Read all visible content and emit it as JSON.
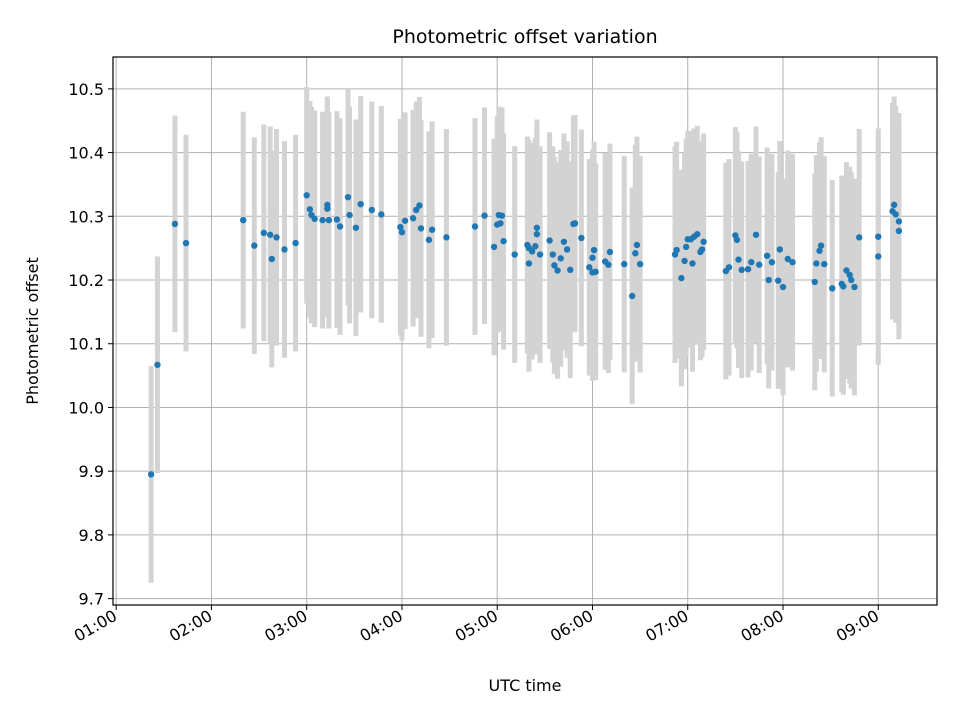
{
  "chart_data": {
    "type": "scatter",
    "title": "Photometric offset variation",
    "xlabel": "UTC time",
    "ylabel": "Photometric offset",
    "x_ticks": [
      "01:00",
      "02:00",
      "03:00",
      "04:00",
      "05:00",
      "06:00",
      "07:00",
      "08:00",
      "09:00"
    ],
    "y_ticks": [
      "9.7",
      "9.8",
      "9.9",
      "10.0",
      "10.1",
      "10.2",
      "10.3",
      "10.4",
      "10.5"
    ],
    "xlim": [
      "00:58",
      "09:37"
    ],
    "ylim": [
      9.69,
      10.55
    ],
    "grid": true,
    "colors": {
      "points": "#1f77b4",
      "error_bars": "#d3d3d3",
      "grid": "#b0b0b0"
    },
    "error_bar_halfwidth": 0.17,
    "points": [
      {
        "t": "01:22",
        "y": 9.895
      },
      {
        "t": "01:26",
        "y": 10.067
      },
      {
        "t": "01:37",
        "y": 10.288
      },
      {
        "t": "01:44",
        "y": 10.258
      },
      {
        "t": "02:20",
        "y": 10.294
      },
      {
        "t": "02:27",
        "y": 10.254
      },
      {
        "t": "02:33",
        "y": 10.274
      },
      {
        "t": "02:37",
        "y": 10.271
      },
      {
        "t": "02:38",
        "y": 10.233
      },
      {
        "t": "02:41",
        "y": 10.267
      },
      {
        "t": "02:46",
        "y": 10.248
      },
      {
        "t": "02:53",
        "y": 10.258
      },
      {
        "t": "03:00",
        "y": 10.333
      },
      {
        "t": "03:02",
        "y": 10.311
      },
      {
        "t": "03:03",
        "y": 10.302
      },
      {
        "t": "03:05",
        "y": 10.296
      },
      {
        "t": "03:10",
        "y": 10.294
      },
      {
        "t": "03:13",
        "y": 10.318
      },
      {
        "t": "03:13",
        "y": 10.312
      },
      {
        "t": "03:14",
        "y": 10.294
      },
      {
        "t": "03:19",
        "y": 10.295
      },
      {
        "t": "03:21",
        "y": 10.284
      },
      {
        "t": "03:26",
        "y": 10.33
      },
      {
        "t": "03:27",
        "y": 10.302
      },
      {
        "t": "03:31",
        "y": 10.282
      },
      {
        "t": "03:34",
        "y": 10.319
      },
      {
        "t": "03:41",
        "y": 10.31
      },
      {
        "t": "03:47",
        "y": 10.303
      },
      {
        "t": "03:59",
        "y": 10.283
      },
      {
        "t": "04:00",
        "y": 10.275
      },
      {
        "t": "04:02",
        "y": 10.293
      },
      {
        "t": "04:07",
        "y": 10.297
      },
      {
        "t": "04:09",
        "y": 10.31
      },
      {
        "t": "04:11",
        "y": 10.317
      },
      {
        "t": "04:12",
        "y": 10.281
      },
      {
        "t": "04:17",
        "y": 10.263
      },
      {
        "t": "04:19",
        "y": 10.279
      },
      {
        "t": "04:28",
        "y": 10.267
      },
      {
        "t": "04:46",
        "y": 10.284
      },
      {
        "t": "04:52",
        "y": 10.301
      },
      {
        "t": "04:58",
        "y": 10.252
      },
      {
        "t": "05:00",
        "y": 10.287
      },
      {
        "t": "05:01",
        "y": 10.302
      },
      {
        "t": "05:02",
        "y": 10.289
      },
      {
        "t": "05:03",
        "y": 10.301
      },
      {
        "t": "05:04",
        "y": 10.261
      },
      {
        "t": "05:11",
        "y": 10.24
      },
      {
        "t": "05:19",
        "y": 10.255
      },
      {
        "t": "05:20",
        "y": 10.25
      },
      {
        "t": "05:20",
        "y": 10.226
      },
      {
        "t": "05:22",
        "y": 10.245
      },
      {
        "t": "05:24",
        "y": 10.253
      },
      {
        "t": "05:25",
        "y": 10.282
      },
      {
        "t": "05:25",
        "y": 10.272
      },
      {
        "t": "05:27",
        "y": 10.24
      },
      {
        "t": "05:33",
        "y": 10.262
      },
      {
        "t": "05:35",
        "y": 10.24
      },
      {
        "t": "05:36",
        "y": 10.223
      },
      {
        "t": "05:38",
        "y": 10.215
      },
      {
        "t": "05:40",
        "y": 10.234
      },
      {
        "t": "05:42",
        "y": 10.26
      },
      {
        "t": "05:44",
        "y": 10.248
      },
      {
        "t": "05:46",
        "y": 10.216
      },
      {
        "t": "05:48",
        "y": 10.288
      },
      {
        "t": "05:49",
        "y": 10.289
      },
      {
        "t": "05:53",
        "y": 10.266
      },
      {
        "t": "05:58",
        "y": 10.22
      },
      {
        "t": "06:00",
        "y": 10.212
      },
      {
        "t": "06:00",
        "y": 10.235
      },
      {
        "t": "06:01",
        "y": 10.247
      },
      {
        "t": "06:02",
        "y": 10.213
      },
      {
        "t": "06:08",
        "y": 10.229
      },
      {
        "t": "06:10",
        "y": 10.224
      },
      {
        "t": "06:11",
        "y": 10.244
      },
      {
        "t": "06:20",
        "y": 10.225
      },
      {
        "t": "06:25",
        "y": 10.175
      },
      {
        "t": "06:27",
        "y": 10.242
      },
      {
        "t": "06:28",
        "y": 10.255
      },
      {
        "t": "06:30",
        "y": 10.225
      },
      {
        "t": "06:52",
        "y": 10.24
      },
      {
        "t": "06:53",
        "y": 10.247
      },
      {
        "t": "06:56",
        "y": 10.203
      },
      {
        "t": "06:58",
        "y": 10.23
      },
      {
        "t": "06:59",
        "y": 10.252
      },
      {
        "t": "07:00",
        "y": 10.264
      },
      {
        "t": "07:02",
        "y": 10.264
      },
      {
        "t": "07:03",
        "y": 10.226
      },
      {
        "t": "07:04",
        "y": 10.268
      },
      {
        "t": "07:06",
        "y": 10.272
      },
      {
        "t": "07:08",
        "y": 10.244
      },
      {
        "t": "07:09",
        "y": 10.248
      },
      {
        "t": "07:10",
        "y": 10.26
      },
      {
        "t": "07:24",
        "y": 10.214
      },
      {
        "t": "07:26",
        "y": 10.22
      },
      {
        "t": "07:30",
        "y": 10.27
      },
      {
        "t": "07:31",
        "y": 10.263
      },
      {
        "t": "07:32",
        "y": 10.232
      },
      {
        "t": "07:34",
        "y": 10.216
      },
      {
        "t": "07:38",
        "y": 10.217
      },
      {
        "t": "07:40",
        "y": 10.228
      },
      {
        "t": "07:43",
        "y": 10.271
      },
      {
        "t": "07:45",
        "y": 10.224
      },
      {
        "t": "07:50",
        "y": 10.238
      },
      {
        "t": "07:51",
        "y": 10.2
      },
      {
        "t": "07:53",
        "y": 10.228
      },
      {
        "t": "07:57",
        "y": 10.199
      },
      {
        "t": "07:58",
        "y": 10.248
      },
      {
        "t": "08:00",
        "y": 10.189
      },
      {
        "t": "08:03",
        "y": 10.233
      },
      {
        "t": "08:06",
        "y": 10.228
      },
      {
        "t": "08:20",
        "y": 10.197
      },
      {
        "t": "08:21",
        "y": 10.226
      },
      {
        "t": "08:23",
        "y": 10.246
      },
      {
        "t": "08:24",
        "y": 10.254
      },
      {
        "t": "08:26",
        "y": 10.225
      },
      {
        "t": "08:31",
        "y": 10.187
      },
      {
        "t": "08:37",
        "y": 10.194
      },
      {
        "t": "08:38",
        "y": 10.19
      },
      {
        "t": "08:40",
        "y": 10.215
      },
      {
        "t": "08:42",
        "y": 10.208
      },
      {
        "t": "08:43",
        "y": 10.2
      },
      {
        "t": "08:45",
        "y": 10.189
      },
      {
        "t": "08:48",
        "y": 10.267
      },
      {
        "t": "09:00",
        "y": 10.268
      },
      {
        "t": "09:00",
        "y": 10.237
      },
      {
        "t": "09:09",
        "y": 10.308
      },
      {
        "t": "09:10",
        "y": 10.318
      },
      {
        "t": "09:11",
        "y": 10.303
      },
      {
        "t": "09:13",
        "y": 10.292
      },
      {
        "t": "09:13",
        "y": 10.277
      }
    ]
  }
}
